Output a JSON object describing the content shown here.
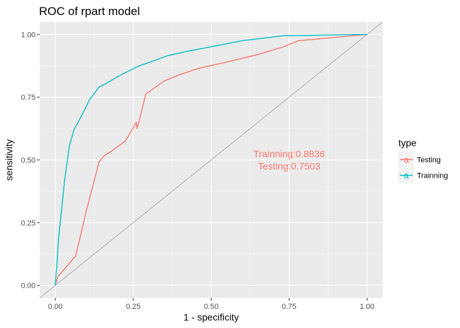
{
  "chart_data": {
    "type": "line",
    "title": "ROC of rpart model",
    "xlabel": "1 - specificity",
    "ylabel": "sensitivity",
    "xlim": [
      0,
      1
    ],
    "ylim": [
      0,
      1
    ],
    "xticks": [
      0,
      0.25,
      0.5,
      0.75,
      1
    ],
    "yticks": [
      0,
      0.25,
      0.5,
      0.75,
      1
    ],
    "xtick_labels": [
      "0.00",
      "0.25",
      "0.50",
      "0.75",
      "1.00"
    ],
    "ytick_labels": [
      "0.00",
      "0.25",
      "0.50",
      "0.75",
      "1.00"
    ],
    "grid": true,
    "legend": {
      "title": "type",
      "position": "right"
    },
    "reference_line": {
      "from": [
        -0.05,
        -0.05
      ],
      "to": [
        1.05,
        1.05
      ],
      "color": "#b3b3b3"
    },
    "series": [
      {
        "name": "Testing",
        "color": "#f8766d",
        "x": [
          0,
          0.008,
          0.015,
          0.04,
          0.06,
          0.065,
          0.1,
          0.14,
          0.155,
          0.18,
          0.225,
          0.26,
          0.262,
          0.27,
          0.29,
          0.35,
          0.4,
          0.46,
          0.55,
          0.65,
          0.73,
          0.78,
          1
        ],
        "y": [
          0,
          0.035,
          0.045,
          0.08,
          0.11,
          0.115,
          0.3,
          0.49,
          0.515,
          0.535,
          0.575,
          0.65,
          0.625,
          0.66,
          0.762,
          0.815,
          0.84,
          0.865,
          0.89,
          0.92,
          0.95,
          0.975,
          1
        ]
      },
      {
        "name": "Trainning",
        "color": "#00bfc4",
        "x": [
          0,
          0.002,
          0.005,
          0.01,
          0.02,
          0.03,
          0.045,
          0.06,
          0.09,
          0.11,
          0.14,
          0.17,
          0.22,
          0.27,
          0.36,
          0.42,
          0.5,
          0.6,
          0.7,
          0.73,
          1
        ],
        "y": [
          0,
          0.04,
          0.08,
          0.18,
          0.3,
          0.42,
          0.555,
          0.62,
          0.69,
          0.74,
          0.79,
          0.81,
          0.845,
          0.875,
          0.915,
          0.932,
          0.951,
          0.975,
          0.99,
          0.995,
          1
        ]
      }
    ],
    "annotations": [
      {
        "text": "Trainning:0.8836",
        "x": 0.75,
        "y": 0.525,
        "color": "#f8766d"
      },
      {
        "text": "Testing:0.7503",
        "x": 0.75,
        "y": 0.475,
        "color": "#f8766d"
      }
    ]
  }
}
